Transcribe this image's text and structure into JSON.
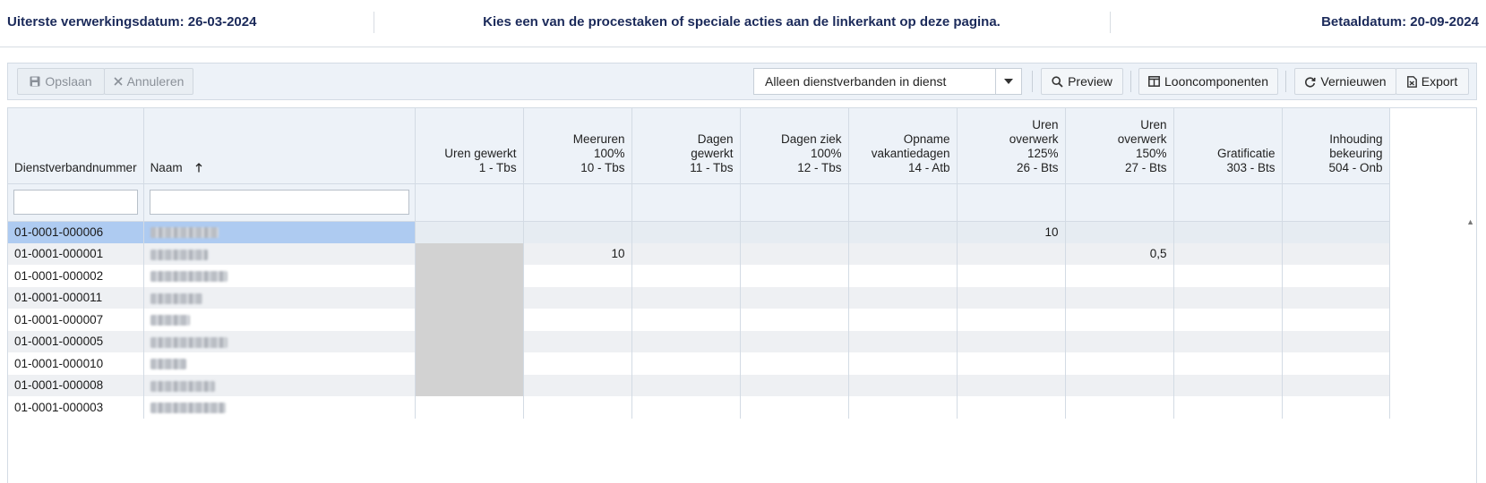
{
  "header": {
    "deadline": "Uiterste verwerkingsdatum: 26-03-2024",
    "instruction": "Kies een van de procestaken of speciale acties aan de linkerkant op deze pagina.",
    "paydate": "Betaaldatum: 20-09-2024"
  },
  "toolbar": {
    "save_label": "Opslaan",
    "cancel_label": "Annuleren",
    "filter_select_value": "Alleen dienstverbanden in dienst",
    "preview_label": "Preview",
    "components_label": "Looncomponenten",
    "refresh_label": "Vernieuwen",
    "export_label": "Export"
  },
  "columns": [
    {
      "label": "Dienstverbandnummer"
    },
    {
      "label": "Naam"
    },
    {
      "label": "Uren gewerkt\n1 - Tbs"
    },
    {
      "label": "Meeruren\n100%\n10 - Tbs"
    },
    {
      "label": "Dagen\ngewerkt\n11 - Tbs"
    },
    {
      "label": "Dagen ziek\n100%\n12 - Tbs"
    },
    {
      "label": "Opname\nvakantiedagen\n14 - Atb"
    },
    {
      "label": "Uren\noverwerk\n125%\n26 - Bts"
    },
    {
      "label": "Uren\noverwerk\n150%\n27 - Bts"
    },
    {
      "label": "Gratificatie\n303 - Bts"
    },
    {
      "label": "Inhouding\nbekeuring\n504 - Onb"
    }
  ],
  "rows": [
    {
      "id": "01-0001-000006",
      "cells": [
        "",
        "",
        "",
        "",
        "",
        "10",
        "",
        "",
        ""
      ],
      "blur_w": 76
    },
    {
      "id": "01-0001-000001",
      "cells": [
        "",
        "10",
        "",
        "",
        "",
        "",
        "0,5",
        "",
        ""
      ],
      "blur_w": 64
    },
    {
      "id": "01-0001-000002",
      "cells": [
        "",
        "",
        "",
        "",
        "",
        "",
        "",
        "",
        ""
      ],
      "blur_w": 86
    },
    {
      "id": "01-0001-000011",
      "cells": [
        "",
        "",
        "",
        "",
        "",
        "",
        "",
        "",
        ""
      ],
      "blur_w": 58
    },
    {
      "id": "01-0001-000007",
      "cells": [
        "",
        "",
        "",
        "",
        "",
        "",
        "",
        "",
        ""
      ],
      "blur_w": 44
    },
    {
      "id": "01-0001-000005",
      "cells": [
        "",
        "",
        "",
        "",
        "",
        "",
        "",
        "",
        ""
      ],
      "blur_w": 86
    },
    {
      "id": "01-0001-000010",
      "cells": [
        "",
        "",
        "",
        "",
        "",
        "",
        "",
        "",
        ""
      ],
      "blur_w": 40
    },
    {
      "id": "01-0001-000008",
      "cells": [
        "",
        "",
        "",
        "",
        "",
        "",
        "",
        "",
        ""
      ],
      "blur_w": 72
    },
    {
      "id": "01-0001-000003",
      "cells": [
        "",
        "",
        "",
        "",
        "",
        "",
        "",
        "",
        ""
      ],
      "blur_w": 84
    }
  ],
  "selected_row": 0,
  "icons": {
    "save": "floppy-disk-icon",
    "cancel": "close-icon",
    "dropdown": "caret-down-icon",
    "preview": "search-icon",
    "components": "columns-icon",
    "refresh": "refresh-icon",
    "export": "file-export-icon",
    "sort": "arrow-up-icon"
  },
  "colors": {
    "header_text": "#1b2a5a",
    "toolbar_bg": "#edf2f8",
    "selected_row": "#aecbf1",
    "locked_cell": "#d2d2d2",
    "alt_row": "#eef0f3"
  }
}
